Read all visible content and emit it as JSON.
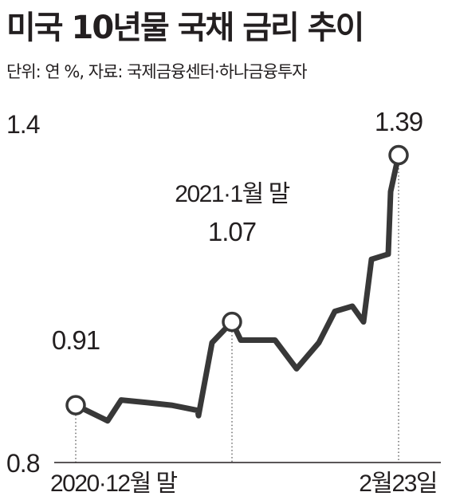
{
  "title": "미국 10년물 국채 금리 추이",
  "source": "단위: 연 %, 자료: 국제금융센터·하나금융투자",
  "chart_data": {
    "type": "line",
    "title": "미국 10년물 국채 금리 추이",
    "ylabel": "",
    "xlabel": "",
    "ylim": [
      0.8,
      1.4
    ],
    "y_ticks": [
      "1.4",
      "0.8"
    ],
    "x_labels": [
      "2020·12월 말",
      "2월23일"
    ],
    "grid": false,
    "line_color": "#383838",
    "series": [
      {
        "values": [
          0.91,
          0.88,
          0.92,
          0.915,
          0.91,
          0.905,
          0.9,
          0.89,
          1.03,
          1.07,
          1.035,
          1.035,
          1.035,
          0.98,
          1.03,
          1.09,
          1.1,
          1.07,
          1.19,
          1.2,
          1.32,
          1.39
        ]
      }
    ],
    "annotations": [
      {
        "point_index": 0,
        "label": "0.91"
      },
      {
        "point_index": 9,
        "label": "1.07",
        "note": "2021·1월 말"
      },
      {
        "point_index": 21,
        "label": "1.39"
      }
    ]
  }
}
